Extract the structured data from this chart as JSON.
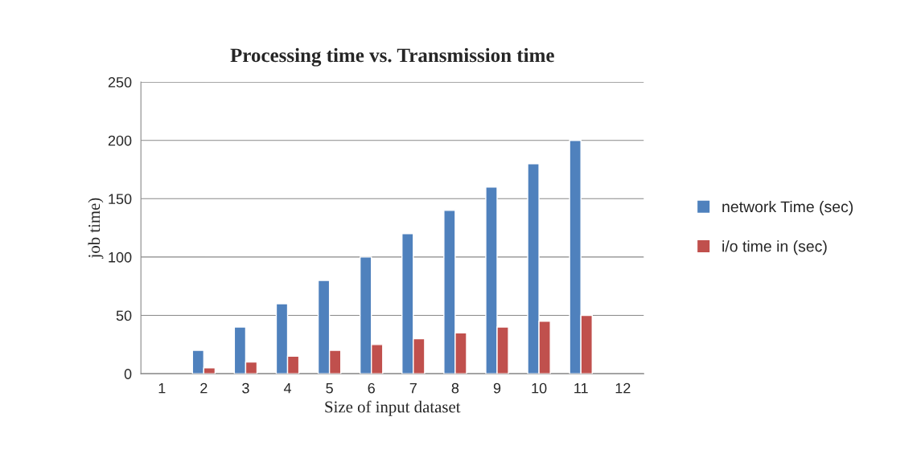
{
  "chart_data": {
    "type": "bar",
    "title": "Processing time vs. Transmission time",
    "xlabel": "Size of input dataset",
    "ylabel": "job time)",
    "categories": [
      "1",
      "2",
      "3",
      "4",
      "5",
      "6",
      "7",
      "8",
      "9",
      "10",
      "11",
      "12"
    ],
    "series": [
      {
        "name": "network Time (sec)",
        "color": "#4f81bd",
        "values": [
          null,
          20,
          40,
          60,
          80,
          100,
          120,
          140,
          160,
          180,
          200,
          null
        ]
      },
      {
        "name": "i/o time in (sec)",
        "color": "#c0504d",
        "values": [
          null,
          5,
          10,
          15,
          20,
          25,
          30,
          35,
          40,
          45,
          50,
          null
        ]
      }
    ],
    "ylim": [
      0,
      250
    ],
    "yticks": [
      0,
      50,
      100,
      150,
      200,
      250
    ],
    "grid": "y",
    "legend": "right"
  }
}
